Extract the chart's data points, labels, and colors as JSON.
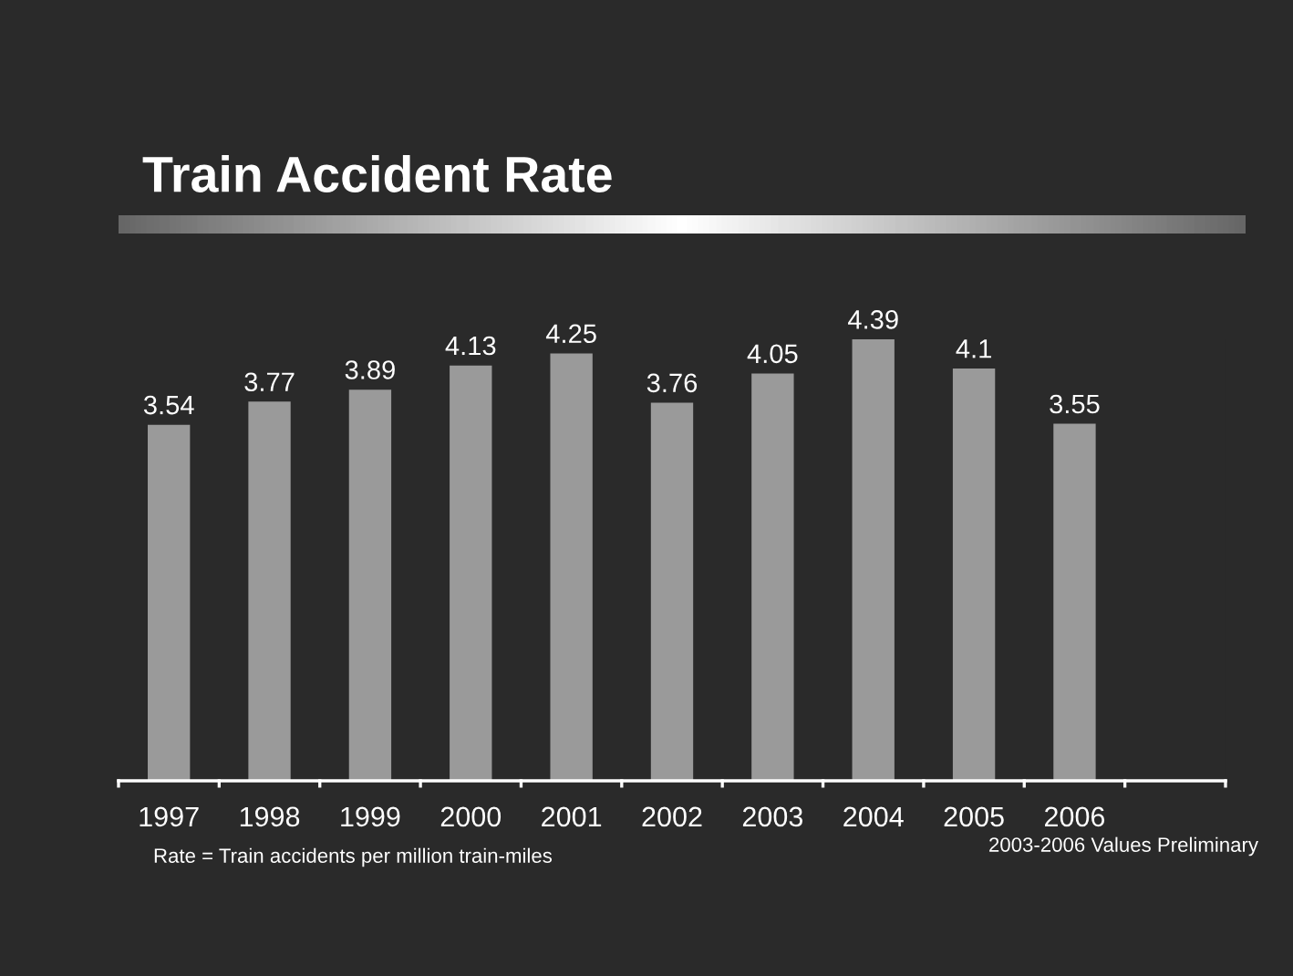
{
  "chart_data": {
    "type": "bar",
    "title": "Train Accident Rate",
    "categories": [
      "1997",
      "1998",
      "1999",
      "2000",
      "2001",
      "2002",
      "2003",
      "2004",
      "2005",
      "2006",
      null
    ],
    "values": [
      3.54,
      3.77,
      3.89,
      4.13,
      4.25,
      3.76,
      4.05,
      4.39,
      4.1,
      3.55,
      null
    ],
    "color": "#9a9a9a",
    "tick_labels": "x",
    "data_labels": true,
    "grid": false,
    "legend": false,
    "annotations": [
      "Rate = Train accidents per million train-miles",
      "2003-2006 Values Preliminary"
    ]
  }
}
